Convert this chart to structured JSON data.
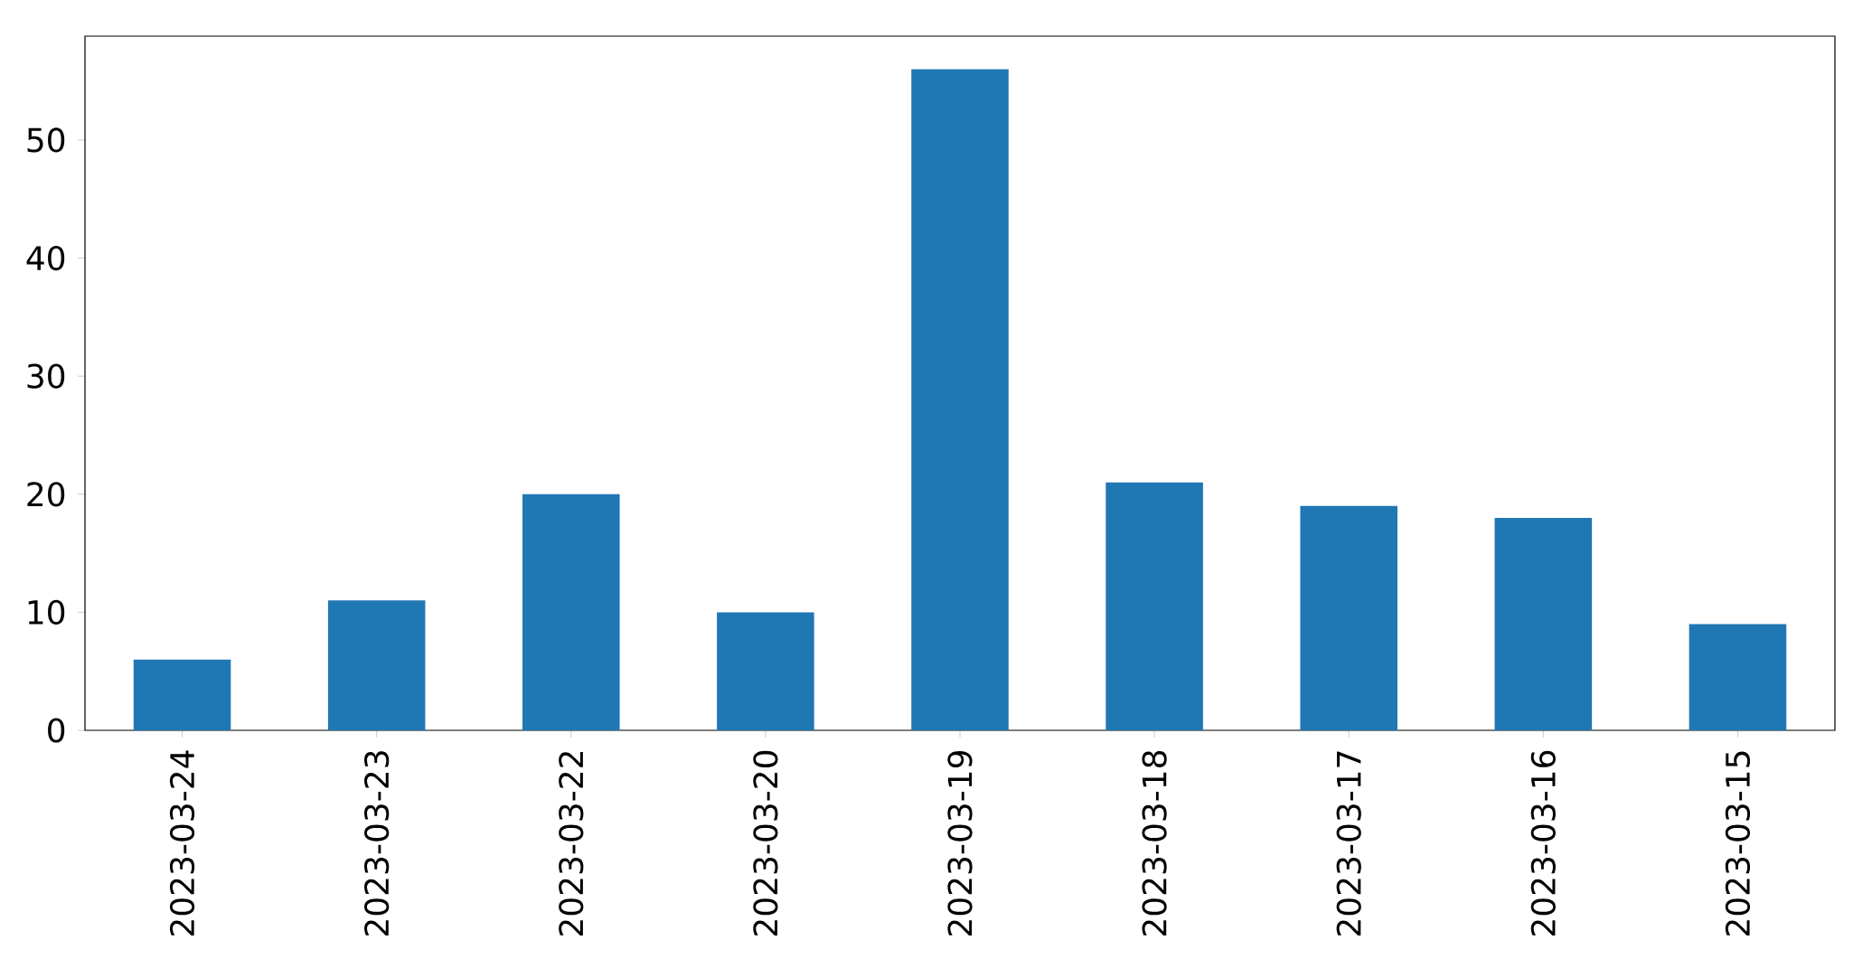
{
  "chart_data": {
    "type": "bar",
    "categories": [
      "2023-03-24",
      "2023-03-23",
      "2023-03-22",
      "2023-03-20",
      "2023-03-19",
      "2023-03-18",
      "2023-03-17",
      "2023-03-16",
      "2023-03-15"
    ],
    "values": [
      6,
      11,
      20,
      10,
      56,
      21,
      19,
      18,
      9
    ],
    "color": "#1f77b4",
    "ylim": [
      0,
      58.8
    ],
    "yticks": [
      0,
      10,
      20,
      30,
      40,
      50
    ]
  }
}
